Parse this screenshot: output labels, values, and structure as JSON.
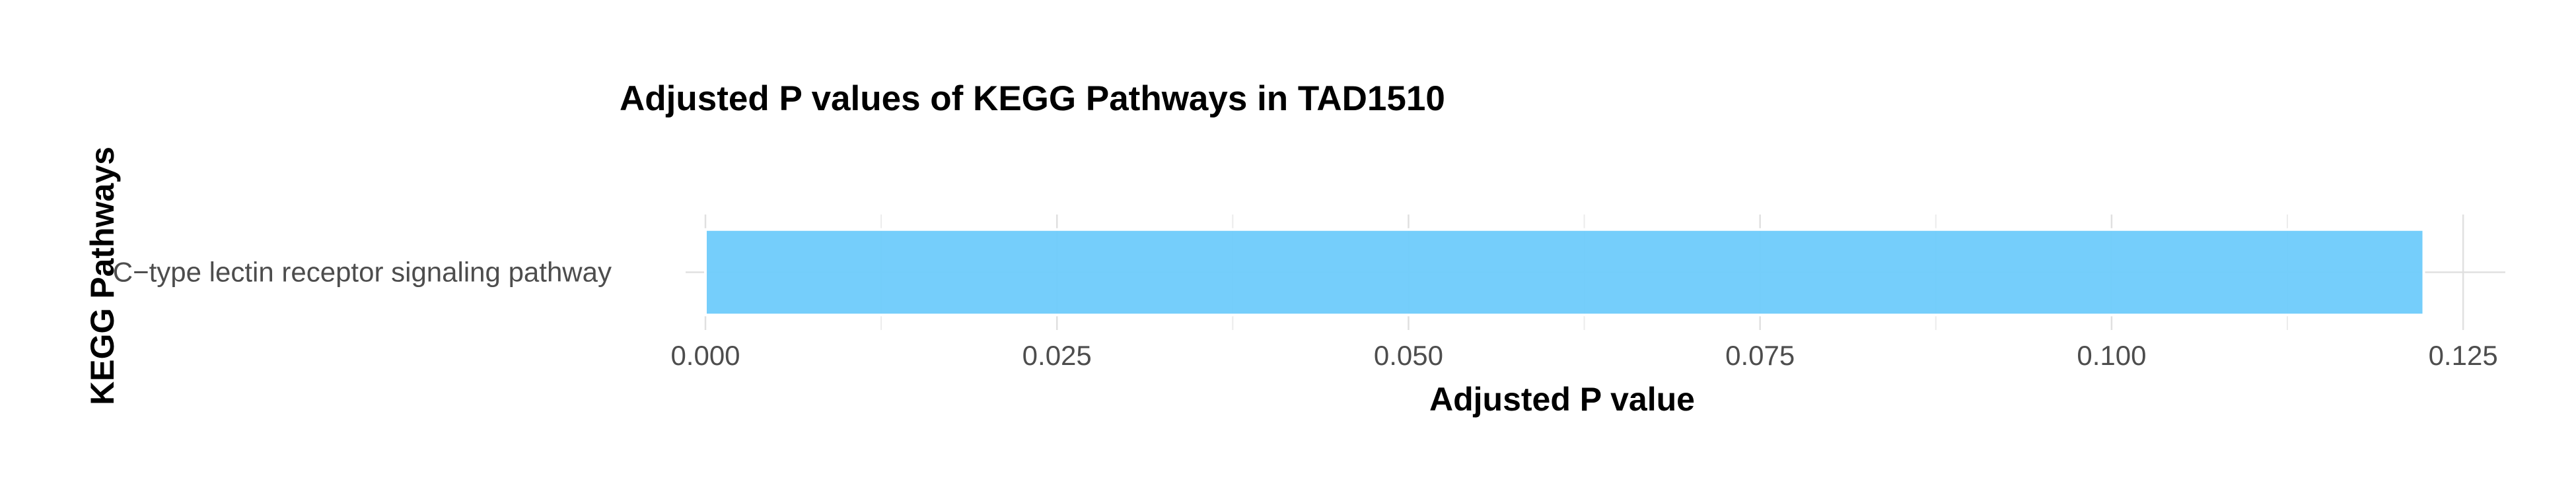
{
  "chart_data": {
    "type": "bar",
    "orientation": "horizontal",
    "title": "Adjusted P values of KEGG Pathways in TAD1510",
    "xlabel": "Adjusted P value",
    "ylabel": "KEGG Pathways",
    "categories": [
      "C−type lectin receptor signaling pathway"
    ],
    "values": [
      0.1222
    ],
    "xlim": [
      0,
      0.128
    ],
    "xticks": [
      0.0,
      0.025,
      0.05,
      0.075,
      0.1,
      0.125
    ],
    "xtick_labels": [
      "0.000",
      "0.025",
      "0.050",
      "0.075",
      "0.100",
      "0.125"
    ],
    "grid": true,
    "bar_color": "#6ECBFB"
  }
}
